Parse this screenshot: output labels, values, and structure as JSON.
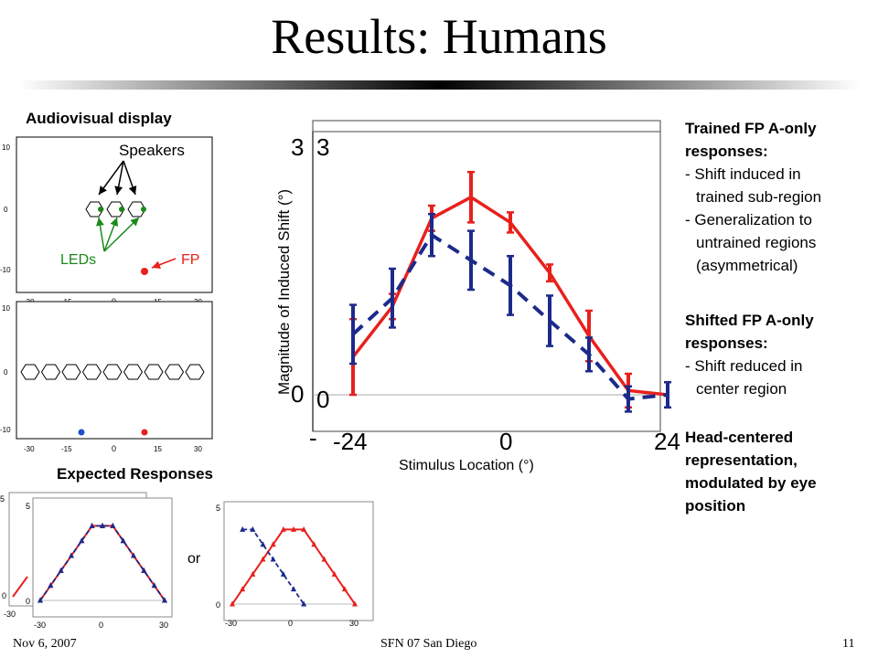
{
  "slide": {
    "title": "Results: Humans",
    "footer_left": "Nov 6, 2007",
    "footer_center": "SFN 07 San Diego",
    "footer_right": "11"
  },
  "display_panel": {
    "heading": "Audiovisual display",
    "speakers_label": "Speakers",
    "leds_label": "LEDs",
    "fp_label": "FP",
    "yticks": [
      "10",
      "0",
      "-10"
    ],
    "xticks": [
      "-30",
      "-15",
      "0",
      "15",
      "30"
    ],
    "colors": {
      "led": "#1a8a1a",
      "fp": "#e8201c",
      "shifted_fp": "#1f4fc8"
    }
  },
  "expected_panel": {
    "heading": "Expected Responses",
    "or_label": "or",
    "ytick_top": "5",
    "ytick_bottom": "0",
    "xticks": [
      "-30",
      "0",
      "30"
    ]
  },
  "main_chart": {
    "ytick_top": "3",
    "ytick_bottom": "0",
    "ytick_top_inner": "3",
    "ytick_bottom_inner": "0",
    "xtick_left": "-24",
    "xtick_mid": "0",
    "xtick_right": "24",
    "dash_mark": "-",
    "ylabel": "Magnitude of Induced Shift (°)",
    "xlabel": "Stimulus Location (°)"
  },
  "notes": {
    "trained_heading": "Trained FP A-only responses:",
    "trained_b1": "- Shift induced in",
    "trained_b1b": "trained sub-region",
    "trained_b2": "- Generalization to",
    "trained_b2b": "untrained regions",
    "trained_b2c": "(asymmetrical)",
    "shifted_heading": "Shifted FP A-only responses:",
    "shifted_b1": "- Shift reduced in",
    "shifted_b1b": "center region",
    "head_centered": "Head-centered representation, modulated by eye position"
  },
  "chart_data": [
    {
      "type": "line",
      "title": "",
      "xlabel": "Stimulus Location (°)",
      "ylabel": "Magnitude of Induced Shift (°)",
      "xlim": [
        -24,
        24
      ],
      "ylim": [
        0,
        3
      ],
      "series": [
        {
          "style": "solid",
          "color": "#e8201c",
          "x": [
            -24,
            -18,
            -12,
            -6,
            0,
            6,
            12,
            18,
            24
          ],
          "y": [
            0.45,
            1.05,
            2.1,
            2.35,
            2.05,
            1.45,
            0.7,
            0.05,
            0.0
          ],
          "err": [
            0.45,
            0.15,
            0.15,
            0.3,
            0.12,
            0.1,
            0.3,
            0.2,
            0.15
          ]
        },
        {
          "style": "dashed",
          "color": "#1c2a8a",
          "x": [
            -24,
            -18,
            -12,
            -6,
            0,
            6,
            12,
            18,
            24
          ],
          "y": [
            0.72,
            1.15,
            1.9,
            1.6,
            1.3,
            0.88,
            0.48,
            -0.05,
            0.0
          ],
          "err": [
            0.35,
            0.35,
            0.25,
            0.35,
            0.35,
            0.3,
            0.2,
            0.15,
            0.15
          ]
        }
      ]
    },
    {
      "type": "line",
      "xticks": [
        "-30",
        "0",
        "30"
      ],
      "xlim": [
        -30,
        30
      ],
      "ylim": [
        0,
        5
      ],
      "series": [
        {
          "style": "solid",
          "color": "#e8201c",
          "x": [
            -30,
            -25,
            -20,
            -15,
            -10,
            -5,
            0,
            5,
            10,
            15,
            20,
            25,
            30
          ],
          "y": [
            0,
            0.8,
            1.6,
            2.4,
            3.2,
            4,
            4,
            4,
            3.2,
            2.4,
            1.6,
            0.8,
            0
          ]
        },
        {
          "style": "dashed",
          "color": "#1c2a8a",
          "x": [
            -30,
            -25,
            -20,
            -15,
            -10,
            -5,
            0,
            5,
            10,
            15,
            20,
            25,
            30
          ],
          "y": [
            0,
            0.8,
            1.6,
            2.4,
            3.2,
            4,
            4,
            4,
            3.2,
            2.4,
            1.6,
            0.8,
            0
          ]
        }
      ]
    },
    {
      "type": "line",
      "xticks": [
        "-30",
        "0",
        "30"
      ],
      "xlim": [
        -30,
        30
      ],
      "ylim": [
        0,
        5
      ],
      "series": [
        {
          "style": "solid",
          "color": "#e8201c",
          "x": [
            -30,
            -25,
            -20,
            -15,
            -10,
            -5,
            0,
            5,
            10,
            15,
            20,
            25,
            30
          ],
          "y": [
            0,
            0.8,
            1.6,
            2.4,
            3.2,
            4,
            4,
            4,
            3.2,
            2.4,
            1.6,
            0.8,
            0
          ]
        },
        {
          "style": "dashed",
          "color": "#1c2a8a",
          "x": [
            -25,
            -20,
            -15,
            -10,
            -5,
            0,
            5
          ],
          "y": [
            4,
            4,
            3.2,
            2.4,
            1.6,
            0.8,
            0
          ]
        }
      ]
    }
  ]
}
